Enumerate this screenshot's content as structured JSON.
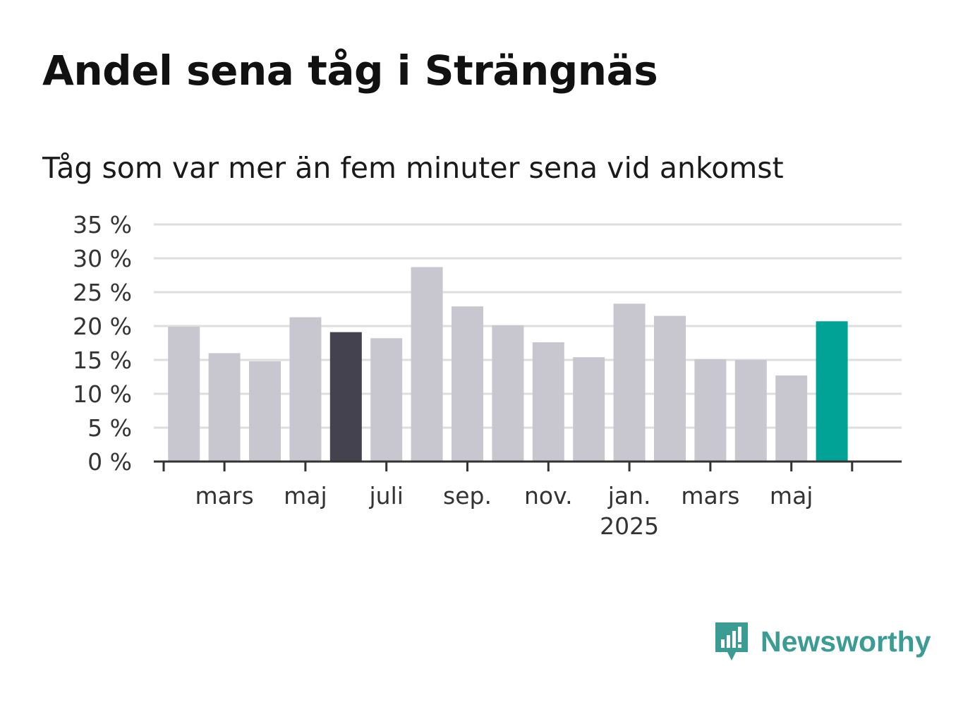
{
  "title": "Andel sena tåg i Strängnäs",
  "subtitle": "Tåg som var mer än fem minuter sena vid ankomst",
  "brand": {
    "name": "Newsworthy",
    "logo_icon": "bar-chart-speech-bubble-icon"
  },
  "colors": {
    "default_bar": "#c8c7d0",
    "highlight_dark": "#43424e",
    "highlight_latest": "#00a396",
    "grid": "#dedede",
    "axis": "#333333",
    "brand": "#3a9c92"
  },
  "chart_data": {
    "type": "bar",
    "x": [
      "2024-02",
      "2024-03",
      "2024-04",
      "2024-05",
      "2024-06",
      "2024-07",
      "2024-08",
      "2024-09",
      "2024-10",
      "2024-11",
      "2024-12",
      "2025-01",
      "2025-02",
      "2025-03",
      "2025-04",
      "2025-05",
      "2025-06"
    ],
    "values": [
      19.9,
      16.0,
      14.8,
      21.3,
      19.1,
      18.2,
      28.7,
      22.9,
      20.1,
      17.6,
      15.4,
      23.3,
      21.5,
      15.1,
      15.0,
      12.7,
      20.7
    ],
    "highlight": {
      "2024-06": "highlight_dark",
      "2025-06": "highlight_latest"
    },
    "ylim": [
      0,
      35
    ],
    "yticks": [
      0,
      5,
      10,
      15,
      20,
      25,
      30,
      35
    ],
    "ytick_labels": [
      "0 %",
      "5 %",
      "10 %",
      "15 %",
      "20 %",
      "25 %",
      "30 %",
      "35 %"
    ],
    "xticks": [
      {
        "x": "2024-03",
        "label": "mars"
      },
      {
        "x": "2024-05",
        "label": "maj"
      },
      {
        "x": "2024-07",
        "label": "juli"
      },
      {
        "x": "2024-09",
        "label": "sep."
      },
      {
        "x": "2024-11",
        "label": "nov."
      },
      {
        "x": "2025-01",
        "label": "jan.",
        "sublabel": "2025"
      },
      {
        "x": "2025-03",
        "label": "mars"
      },
      {
        "x": "2025-05",
        "label": "maj"
      }
    ],
    "grid": true,
    "xlabel": "",
    "ylabel": ""
  }
}
